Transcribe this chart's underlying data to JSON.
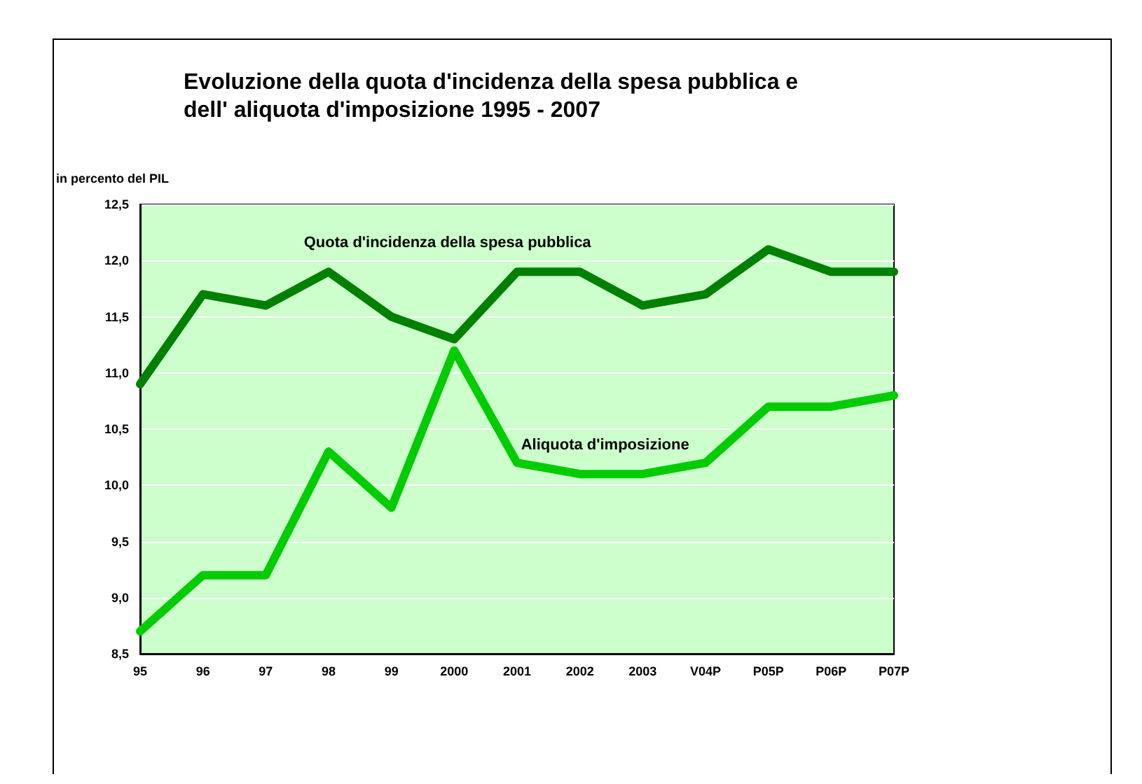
{
  "chart_data": {
    "type": "line",
    "title": "Evoluzione della quota d'incidenza della spesa pubblica e\ndell' aliquota d'imposizione 1995 - 2007",
    "ylabel": "in percento del PIL",
    "categories": [
      "95",
      "96",
      "97",
      "98",
      "99",
      "2000",
      "2001",
      "2002",
      "2003",
      "V04P",
      "P05P",
      "P06P",
      "P07P"
    ],
    "series": [
      {
        "name": "Quota d'incidenza della spesa pubblica",
        "color": "#008000",
        "values": [
          10.9,
          11.7,
          11.6,
          11.9,
          11.5,
          11.3,
          11.9,
          11.9,
          11.6,
          11.7,
          12.1,
          11.9,
          11.9
        ]
      },
      {
        "name": "Aliquota d'imposizione",
        "color": "#00cc00",
        "values": [
          8.7,
          9.2,
          9.2,
          10.3,
          9.8,
          11.2,
          10.2,
          10.1,
          10.1,
          10.2,
          10.7,
          10.7,
          10.8
        ]
      }
    ],
    "ylim": [
      8.5,
      12.5
    ],
    "yticks": [
      {
        "value": 8.5,
        "label": "8,5"
      },
      {
        "value": 9,
        "label": "9,0"
      },
      {
        "value": 9.5,
        "label": "9,5"
      },
      {
        "value": 10,
        "label": "10,0"
      },
      {
        "value": 10.5,
        "label": "10,5"
      },
      {
        "value": 11,
        "label": "11,0"
      },
      {
        "value": 11.5,
        "label": "11,5"
      },
      {
        "value": 12,
        "label": "12,0"
      },
      {
        "value": 12.5,
        "label": "12,5"
      }
    ],
    "grid": "y",
    "legend": false,
    "marker": "none",
    "line_style": "solid"
  }
}
